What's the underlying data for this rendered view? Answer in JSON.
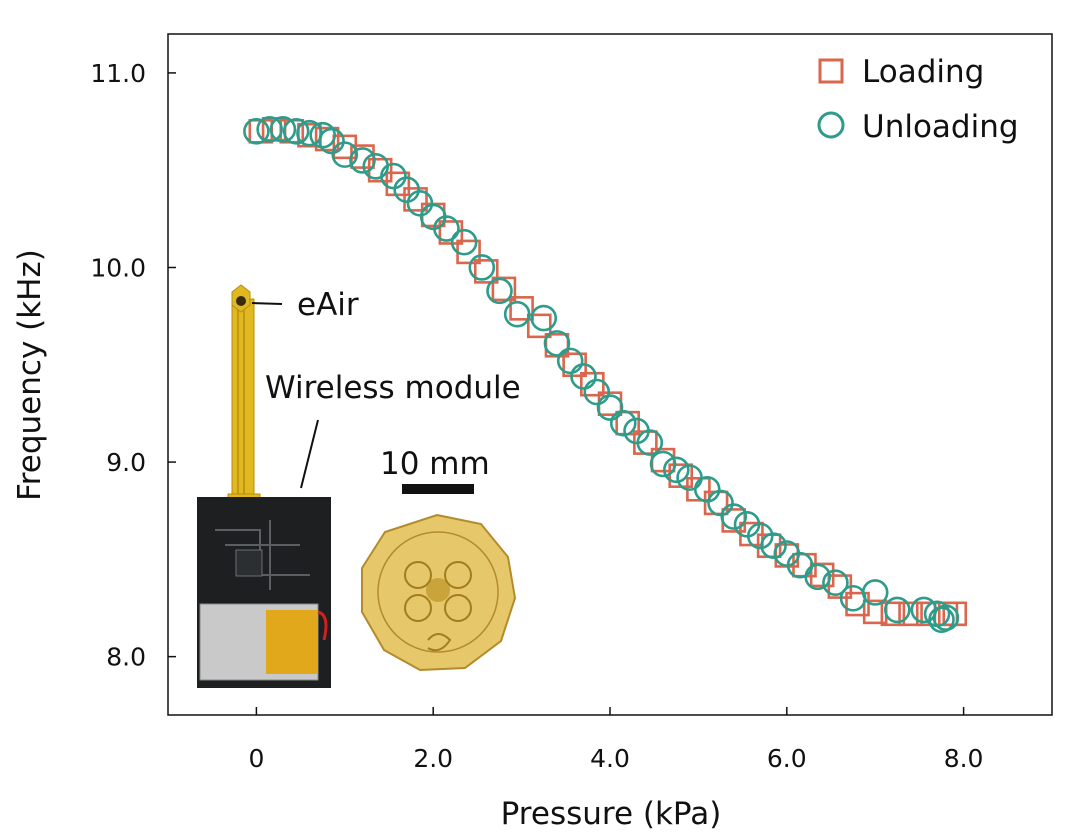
{
  "chart_data": {
    "type": "scatter",
    "xlabel": "Pressure (kPa)",
    "ylabel": "Frequency (kHz)",
    "xlim": [
      -1.0,
      9.0
    ],
    "ylim": [
      7.7,
      11.2
    ],
    "xticks": [
      0,
      2.0,
      4.0,
      6.0,
      8.0
    ],
    "xtick_labels": [
      "0",
      "2.0",
      "4.0",
      "6.0",
      "8.0"
    ],
    "yticks": [
      8.0,
      9.0,
      10.0,
      11.0
    ],
    "ytick_labels": [
      "8.0",
      "9.0",
      "10.0",
      "11.0"
    ],
    "grid": false,
    "legend_position": "top-right",
    "series": [
      {
        "name": "Loading",
        "marker": "square",
        "color": "#D9664D",
        "x": [
          0.05,
          0.2,
          0.4,
          0.6,
          0.8,
          1.0,
          1.2,
          1.4,
          1.6,
          1.8,
          2.0,
          2.2,
          2.4,
          2.6,
          2.8,
          3.0,
          3.2,
          3.4,
          3.6,
          3.8,
          4.0,
          4.2,
          4.4,
          4.6,
          4.8,
          5.0,
          5.2,
          5.4,
          5.6,
          5.8,
          6.0,
          6.2,
          6.4,
          6.6,
          6.8,
          7.0,
          7.2,
          7.4,
          7.6,
          7.8,
          7.9
        ],
        "y": [
          10.7,
          10.71,
          10.7,
          10.68,
          10.66,
          10.62,
          10.57,
          10.5,
          10.43,
          10.35,
          10.27,
          10.18,
          10.08,
          9.98,
          9.89,
          9.79,
          9.7,
          9.6,
          9.5,
          9.4,
          9.3,
          9.2,
          9.1,
          9.01,
          8.93,
          8.86,
          8.79,
          8.7,
          8.63,
          8.57,
          8.52,
          8.47,
          8.42,
          8.36,
          8.27,
          8.23,
          8.22,
          8.22,
          8.22,
          8.22,
          8.22
        ]
      },
      {
        "name": "Unloading",
        "marker": "circle",
        "color": "#2E9C8A",
        "x": [
          0,
          0.15,
          0.3,
          0.45,
          0.6,
          0.75,
          0.85,
          1.0,
          1.2,
          1.35,
          1.55,
          1.7,
          1.85,
          2.0,
          2.15,
          2.35,
          2.55,
          2.75,
          2.95,
          3.25,
          3.4,
          3.55,
          3.7,
          3.85,
          4.0,
          4.15,
          4.3,
          4.45,
          4.6,
          4.75,
          4.9,
          5.1,
          5.25,
          5.4,
          5.55,
          5.7,
          5.85,
          6.0,
          6.15,
          6.35,
          6.55,
          6.75,
          7.0,
          7.25,
          7.55,
          7.7,
          7.75,
          7.8
        ],
        "y": [
          10.7,
          10.71,
          10.71,
          10.7,
          10.69,
          10.68,
          10.65,
          10.58,
          10.55,
          10.52,
          10.47,
          10.4,
          10.33,
          10.26,
          10.2,
          10.13,
          10.0,
          9.88,
          9.76,
          9.74,
          9.61,
          9.52,
          9.44,
          9.36,
          9.28,
          9.2,
          9.16,
          9.1,
          8.99,
          8.96,
          8.92,
          8.86,
          8.79,
          8.72,
          8.68,
          8.62,
          8.57,
          8.53,
          8.47,
          8.41,
          8.38,
          8.3,
          8.33,
          8.24,
          8.24,
          8.22,
          8.19,
          8.2
        ]
      }
    ],
    "annotations": [
      {
        "text": "eAir"
      },
      {
        "text": "Wireless module"
      },
      {
        "text": "10 mm"
      }
    ]
  }
}
